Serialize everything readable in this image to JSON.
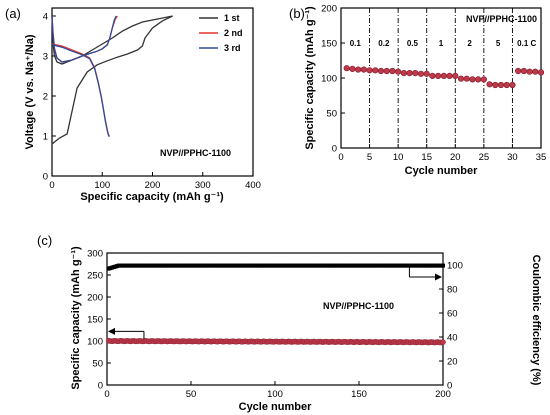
{
  "chart_data": [
    {
      "panel": "(a)",
      "type": "line",
      "xlabel": "Specific capacity (mAh g⁻¹)",
      "ylabel": "Voltage (V vs. Na⁺/Na)",
      "xlim": [
        0,
        400
      ],
      "ylim": [
        0,
        4.2
      ],
      "xticks": [
        0,
        100,
        200,
        300,
        400
      ],
      "yticks": [
        0,
        1,
        2,
        3,
        4
      ],
      "annotation": "NVP//PPHC-1100",
      "legend_position": "top-right",
      "series": [
        {
          "name": "1 st",
          "color": "#333333",
          "charge": {
            "x": [
              0,
              5,
              15,
              30,
              50,
              70,
              90,
              110,
              130,
              150,
              170,
              180,
              185,
              200,
              220,
              240
            ],
            "y": [
              0.8,
              0.85,
              0.95,
              1.05,
              2.2,
              2.6,
              2.78,
              2.88,
              2.97,
              3.05,
              3.15,
              3.25,
              3.45,
              3.7,
              3.88,
              4.0
            ]
          },
          "discharge": {
            "x": [
              240,
              220,
              200,
              180,
              160,
              140,
              120,
              100,
              80,
              60,
              40,
              20,
              10,
              5,
              2,
              0
            ],
            "y": [
              4.0,
              3.95,
              3.9,
              3.85,
              3.75,
              3.62,
              3.45,
              3.3,
              3.15,
              3.0,
              2.9,
              2.8,
              2.85,
              3.0,
              3.3,
              4.0
            ]
          }
        },
        {
          "name": "2 nd",
          "color": "#e3342f",
          "charge": {
            "x": [
              0,
              2,
              5,
              10,
              20,
              40,
              60,
              80,
              90,
              100,
              110,
              115,
              120,
              126,
              130
            ],
            "y": [
              4.0,
              3.6,
              3.2,
              2.95,
              2.85,
              2.9,
              3.0,
              3.08,
              3.12,
              3.18,
              3.28,
              3.45,
              3.7,
              3.92,
              4.0
            ]
          },
          "discharge": {
            "x": [
              0,
              20,
              40,
              60,
              75,
              85,
              92,
              98,
              102,
              106,
              110,
              112,
              114
            ],
            "y": [
              3.3,
              3.25,
              3.15,
              3.05,
              2.95,
              2.7,
              2.35,
              2.0,
              1.7,
              1.4,
              1.15,
              1.05,
              1.0
            ]
          }
        },
        {
          "name": "3 rd",
          "color": "#2b4c9b",
          "charge": {
            "x": [
              0,
              2,
              5,
              10,
              20,
              40,
              60,
              80,
              90,
              100,
              110,
              115,
              120,
              124,
              128
            ],
            "y": [
              4.0,
              3.55,
              3.15,
              2.95,
              2.85,
              2.9,
              3.0,
              3.08,
              3.12,
              3.18,
              3.28,
              3.45,
              3.7,
              3.9,
              4.0
            ]
          },
          "discharge": {
            "x": [
              0,
              20,
              40,
              60,
              75,
              85,
              92,
              98,
              102,
              106,
              110,
              112,
              114
            ],
            "y": [
              3.28,
              3.22,
              3.12,
              3.03,
              2.93,
              2.68,
              2.33,
              1.98,
              1.68,
              1.38,
              1.13,
              1.03,
              0.98
            ]
          }
        }
      ]
    },
    {
      "panel": "(b)",
      "type": "scatter",
      "xlabel": "Cycle number",
      "ylabel": "Specific capacity (mAh g⁻¹)",
      "xlim": [
        0,
        35
      ],
      "ylim": [
        0,
        200
      ],
      "xticks": [
        0,
        5,
        10,
        15,
        20,
        25,
        30,
        35
      ],
      "yticks": [
        0,
        50,
        100,
        150,
        200
      ],
      "annotation": "NVP//PPHC-1100",
      "rate_labels": [
        "0.1",
        "0.2",
        "0.5",
        "1",
        "2",
        "5",
        "0.1 C"
      ],
      "dividers": [
        5,
        10,
        15,
        20,
        25,
        30
      ],
      "marker_color": "#c0394b",
      "x": [
        1,
        2,
        3,
        4,
        5,
        6,
        7,
        8,
        9,
        10,
        11,
        12,
        13,
        14,
        15,
        16,
        17,
        18,
        19,
        20,
        21,
        22,
        23,
        24,
        25,
        26,
        27,
        28,
        29,
        30,
        31,
        32,
        33,
        34,
        35
      ],
      "values": [
        114,
        113,
        112,
        112,
        111,
        111,
        110,
        110,
        110,
        109,
        107,
        107,
        107,
        106,
        106,
        103,
        103,
        103,
        103,
        103,
        99,
        99,
        98,
        98,
        98,
        91,
        90,
        90,
        90,
        90,
        110,
        110,
        109,
        109,
        108
      ]
    },
    {
      "panel": "(c)",
      "type": "scatter",
      "xlabel": "Cycle number",
      "ylabel": "Specific capacity (mAh g⁻¹)",
      "y2label": "Coulombic efficiency (%)",
      "xlim": [
        0,
        200
      ],
      "ylim": [
        0,
        300
      ],
      "y2lim": [
        0,
        110
      ],
      "xticks": [
        0,
        50,
        100,
        150,
        200
      ],
      "yticks": [
        0,
        50,
        100,
        150,
        200,
        250,
        300
      ],
      "y2ticks": [
        0,
        20,
        40,
        60,
        80,
        100
      ],
      "annotation": "NVP//PPHC-1100",
      "series": [
        {
          "axis": "left",
          "color": "#c0394b",
          "x_range": [
            1,
            200
          ],
          "values_start": 100,
          "values_end": 97
        },
        {
          "axis": "right",
          "color": "#000000",
          "x_range": [
            1,
            200
          ],
          "values_start": 97,
          "values_end": 99.5
        }
      ]
    }
  ],
  "panel_labels": {
    "a": "(a)",
    "b": "(b)",
    "c": "(c)"
  },
  "text": {
    "a_xlabel": "Specific capacity (mAh g⁻¹)",
    "a_ylabel": "Voltage (V vs. Na⁺/Na)",
    "a_anno": "NVP//PPHC-1100",
    "a_leg1": "1 st",
    "a_leg2": "2 nd",
    "a_leg3": "3 rd",
    "b_xlabel": "Cycle number",
    "b_ylabel": "Specific capacity (mAh g⁻¹)",
    "b_anno": "NVP//PPHC-1100",
    "c_xlabel": "Cycle number",
    "c_ylabel": "Specific capacity (mAh g⁻¹)",
    "c_y2label": "Coulombic efficiency (%)",
    "c_anno": "NVP//PPHC-1100"
  }
}
